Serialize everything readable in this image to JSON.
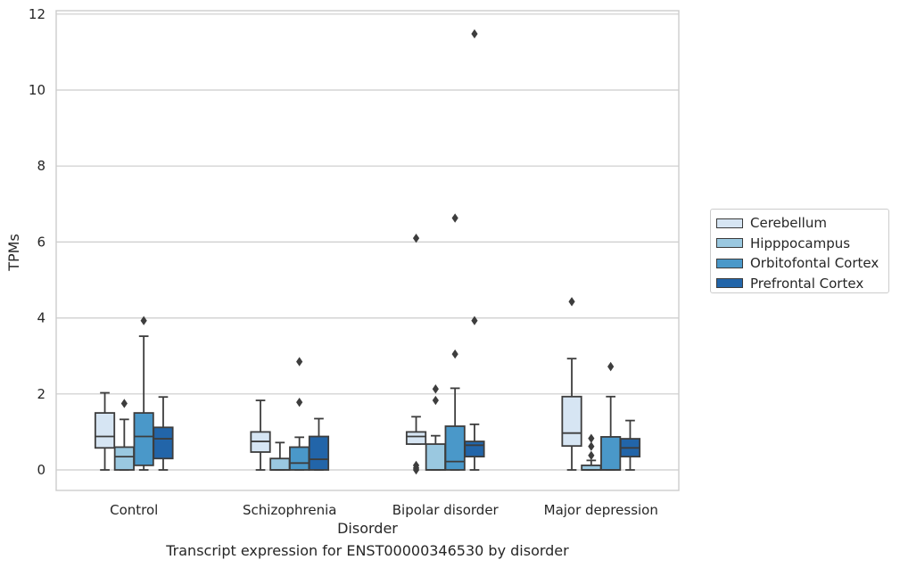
{
  "chart_data": {
    "type": "box",
    "caption": "Transcript expression for ENST00000346530 by disorder",
    "xlabel": "Disorder",
    "ylabel": "TPMs",
    "ylim": [
      -0.55,
      12.1
    ],
    "yticks": [
      0,
      2,
      4,
      6,
      8,
      10,
      12
    ],
    "categories": [
      "Control",
      "Schizophrenia",
      "Bipolar disorder",
      "Major depression"
    ],
    "legend_position": "right",
    "grid": true,
    "series": [
      {
        "name": "Cerebellum",
        "color": "#d6e5f3",
        "boxes": [
          {
            "min": 0.0,
            "q1": 0.58,
            "median": 0.88,
            "q3": 1.5,
            "max": 2.03,
            "outliers": []
          },
          {
            "min": 0.0,
            "q1": 0.47,
            "median": 0.75,
            "q3": 1.0,
            "max": 1.83,
            "outliers": []
          },
          {
            "min": 0.68,
            "q1": 0.68,
            "median": 0.88,
            "q3": 1.0,
            "max": 1.4,
            "outliers": [
              6.1,
              0.12,
              0.05,
              0.0
            ]
          },
          {
            "min": 0.0,
            "q1": 0.63,
            "median": 0.97,
            "q3": 1.93,
            "max": 2.93,
            "outliers": [
              4.43
            ]
          }
        ]
      },
      {
        "name": "Hipppocampus",
        "color": "#9ac8e0",
        "boxes": [
          {
            "min": 0.0,
            "q1": 0.0,
            "median": 0.35,
            "q3": 0.6,
            "max": 1.33,
            "outliers": [
              1.75
            ]
          },
          {
            "min": 0.0,
            "q1": 0.0,
            "median": 0.0,
            "q3": 0.3,
            "max": 0.72,
            "outliers": []
          },
          {
            "min": 0.0,
            "q1": 0.0,
            "median": 0.0,
            "q3": 0.68,
            "max": 0.9,
            "outliers": [
              2.13,
              1.83
            ]
          },
          {
            "min": 0.0,
            "q1": 0.0,
            "median": 0.0,
            "q3": 0.12,
            "max": 0.25,
            "outliers": [
              0.83,
              0.62,
              0.38
            ]
          }
        ]
      },
      {
        "name": "Orbitofontal Cortex",
        "color": "#4a98c9",
        "boxes": [
          {
            "min": 0.0,
            "q1": 0.12,
            "median": 0.88,
            "q3": 1.5,
            "max": 3.52,
            "outliers": [
              3.93
            ]
          },
          {
            "min": 0.0,
            "q1": 0.0,
            "median": 0.18,
            "q3": 0.6,
            "max": 0.86,
            "outliers": [
              2.85,
              1.78
            ]
          },
          {
            "min": 0.0,
            "q1": 0.0,
            "median": 0.22,
            "q3": 1.15,
            "max": 2.15,
            "outliers": [
              6.63,
              3.05
            ]
          },
          {
            "min": 0.0,
            "q1": 0.0,
            "median": 0.0,
            "q3": 0.87,
            "max": 1.93,
            "outliers": [
              2.72
            ]
          }
        ]
      },
      {
        "name": "Prefrontal Cortex",
        "color": "#2265a9",
        "boxes": [
          {
            "min": 0.0,
            "q1": 0.3,
            "median": 0.82,
            "q3": 1.12,
            "max": 1.92,
            "outliers": []
          },
          {
            "min": 0.0,
            "q1": 0.0,
            "median": 0.28,
            "q3": 0.88,
            "max": 1.35,
            "outliers": []
          },
          {
            "min": 0.0,
            "q1": 0.35,
            "median": 0.65,
            "q3": 0.75,
            "max": 1.2,
            "outliers": [
              11.48,
              3.93
            ]
          },
          {
            "min": 0.0,
            "q1": 0.35,
            "median": 0.58,
            "q3": 0.82,
            "max": 1.3,
            "outliers": []
          }
        ]
      }
    ]
  }
}
